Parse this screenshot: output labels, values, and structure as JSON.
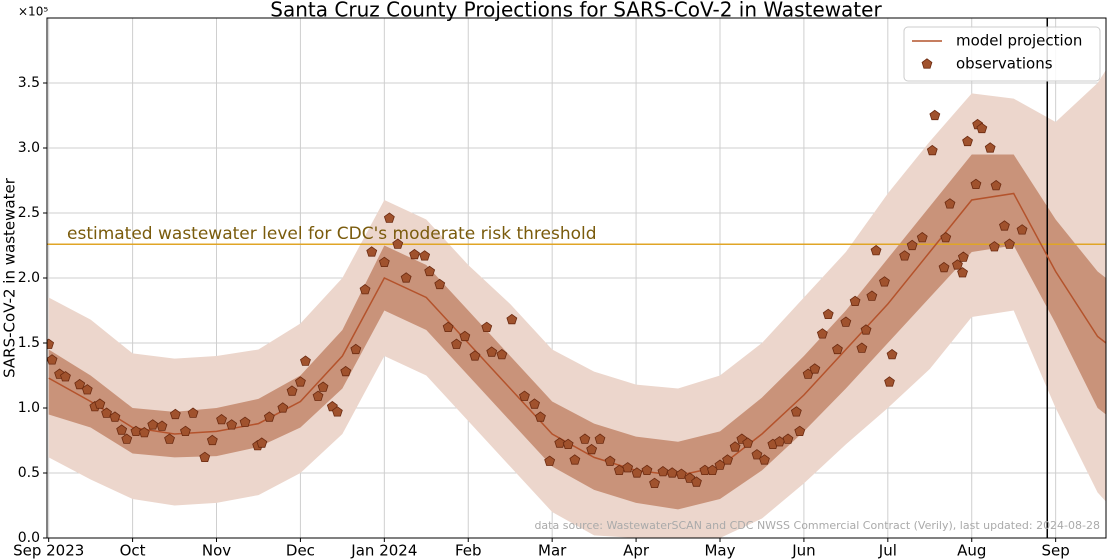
{
  "chart_data": {
    "type": "line",
    "title": "Santa Cruz County Projections for SARS-CoV-2 in Wastewater",
    "ylabel": "SARS-CoV-2 in wastewater",
    "y_multiplier": "×10⁵",
    "note": "data source: WastewaterSCAN and CDC NWSS Commercial Contract (Verily), last updated: 2024-08-28",
    "xlim": [
      -0.02,
      12.6
    ],
    "xticks": [
      {
        "value": 0,
        "label": "Sep 2023"
      },
      {
        "value": 1,
        "label": "Oct"
      },
      {
        "value": 2,
        "label": "Nov"
      },
      {
        "value": 3,
        "label": "Dec"
      },
      {
        "value": 4,
        "label": "Jan 2024"
      },
      {
        "value": 5,
        "label": "Feb"
      },
      {
        "value": 6,
        "label": "Mar"
      },
      {
        "value": 7,
        "label": "Apr"
      },
      {
        "value": 8,
        "label": "May"
      },
      {
        "value": 9,
        "label": "Jun"
      },
      {
        "value": 10,
        "label": "Jul"
      },
      {
        "value": 11,
        "label": "Aug"
      },
      {
        "value": 12,
        "label": "Sep"
      }
    ],
    "ylim": [
      0,
      4.0
    ],
    "yticks": [
      {
        "value": 0,
        "label": "0.0"
      },
      0.5,
      {
        "value": 1,
        "label": "1.0"
      },
      1.5,
      {
        "value": 2,
        "label": "2.0"
      },
      2.5,
      {
        "value": 3,
        "label": "3.0"
      },
      3.5
    ],
    "grid": true,
    "legend": "upper right",
    "threshold": {
      "value": 2.26,
      "label": "estimated wastewater level for CDC's moderate risk threshold",
      "color": "#e0a526",
      "text_color": "#7a5b0c"
    },
    "vline": {
      "value": 11.9,
      "color": "#000000"
    },
    "series": [
      {
        "name": "model projection",
        "type": "line",
        "color": "#b4532c",
        "x": [
          0,
          0.5,
          1,
          1.5,
          2,
          2.5,
          3,
          3.5,
          4,
          4.5,
          5,
          5.5,
          6,
          6.5,
          7,
          7.5,
          8,
          8.5,
          9,
          9.5,
          10,
          10.5,
          11,
          11.5,
          12,
          12.5,
          12.6
        ],
        "values": [
          1.23,
          1.05,
          0.85,
          0.8,
          0.82,
          0.88,
          1.05,
          1.4,
          2.0,
          1.85,
          1.5,
          1.15,
          0.8,
          0.62,
          0.52,
          0.48,
          0.55,
          0.8,
          1.1,
          1.45,
          1.8,
          2.2,
          2.6,
          2.65,
          2.05,
          1.55,
          1.5
        ],
        "intervals": [
          {
            "color": "#ecd6cc",
            "lower": [
              0.62,
              0.45,
              0.3,
              0.25,
              0.27,
              0.33,
              0.5,
              0.8,
              1.4,
              1.25,
              0.9,
              0.55,
              0.2,
              0.02,
              0,
              0,
              0,
              0.15,
              0.42,
              0.72,
              1.0,
              1.3,
              1.7,
              1.75,
              1.0,
              0.35,
              0.28
            ],
            "upper": [
              1.85,
              1.68,
              1.42,
              1.38,
              1.4,
              1.45,
              1.65,
              2.0,
              2.6,
              2.45,
              2.1,
              1.8,
              1.45,
              1.28,
              1.18,
              1.15,
              1.25,
              1.5,
              1.85,
              2.2,
              2.65,
              3.05,
              3.42,
              3.38,
              3.2,
              3.5,
              3.6
            ]
          },
          {
            "color": "#c9937a",
            "lower": [
              0.95,
              0.85,
              0.65,
              0.62,
              0.63,
              0.7,
              0.85,
              1.15,
              1.75,
              1.6,
              1.25,
              0.9,
              0.55,
              0.37,
              0.27,
              0.22,
              0.3,
              0.52,
              0.82,
              1.15,
              1.5,
              1.85,
              2.2,
              2.25,
              1.65,
              1.0,
              0.95
            ],
            "upper": [
              1.45,
              1.25,
              1.0,
              0.97,
              1.0,
              1.07,
              1.25,
              1.6,
              2.25,
              2.1,
              1.75,
              1.4,
              1.05,
              0.88,
              0.78,
              0.74,
              0.82,
              1.08,
              1.4,
              1.75,
              2.15,
              2.55,
              2.95,
              2.95,
              2.45,
              2.05,
              2.0
            ]
          }
        ]
      },
      {
        "name": "observations",
        "type": "scatter",
        "color": "#a0522d",
        "edge_color": "#6b2a10",
        "x": [
          0.0,
          0.04,
          0.13,
          0.2,
          0.37,
          0.46,
          0.55,
          0.61,
          0.69,
          0.79,
          0.87,
          0.93,
          1.04,
          1.14,
          1.24,
          1.35,
          1.44,
          1.51,
          1.63,
          1.72,
          1.86,
          1.95,
          2.06,
          2.18,
          2.34,
          2.49,
          2.54,
          2.63,
          2.79,
          2.9,
          3.0,
          3.06,
          3.21,
          3.27,
          3.38,
          3.44,
          3.54,
          3.66,
          3.77,
          3.85,
          4.0,
          4.06,
          4.16,
          4.26,
          4.36,
          4.48,
          4.54,
          4.66,
          4.76,
          4.86,
          4.96,
          5.08,
          5.22,
          5.28,
          5.4,
          5.52,
          5.67,
          5.79,
          5.86,
          5.97,
          6.09,
          6.19,
          6.27,
          6.39,
          6.47,
          6.57,
          6.69,
          6.8,
          6.9,
          7.01,
          7.13,
          7.22,
          7.32,
          7.43,
          7.54,
          7.64,
          7.72,
          7.82,
          7.91,
          8.0,
          8.09,
          8.18,
          8.26,
          8.33,
          8.44,
          8.53,
          8.63,
          8.71,
          8.81,
          8.91,
          8.95,
          9.05,
          9.13,
          9.22,
          9.29,
          9.4,
          9.5,
          9.61,
          9.69,
          9.74,
          9.81,
          9.86,
          9.96,
          10.02,
          10.05,
          10.2,
          10.29,
          10.41,
          10.53,
          10.56,
          10.67,
          10.69,
          10.74,
          10.83,
          10.89,
          10.9,
          10.95,
          11.05,
          11.07,
          11.12,
          11.22,
          11.27,
          11.29,
          11.39,
          11.45,
          11.6
        ],
        "values": [
          1.49,
          1.37,
          1.26,
          1.24,
          1.18,
          1.14,
          1.01,
          1.03,
          0.96,
          0.93,
          0.83,
          0.76,
          0.82,
          0.81,
          0.87,
          0.86,
          0.76,
          0.95,
          0.82,
          0.96,
          0.62,
          0.75,
          0.91,
          0.87,
          0.89,
          0.71,
          0.73,
          0.93,
          1.0,
          1.13,
          1.2,
          1.36,
          1.09,
          1.16,
          1.01,
          0.97,
          1.28,
          1.45,
          1.91,
          2.2,
          2.12,
          2.46,
          2.26,
          2.0,
          2.18,
          2.17,
          2.05,
          1.95,
          1.62,
          1.49,
          1.55,
          1.4,
          1.62,
          1.43,
          1.41,
          1.68,
          1.09,
          1.03,
          0.93,
          0.59,
          0.73,
          0.72,
          0.6,
          0.76,
          0.68,
          0.76,
          0.59,
          0.52,
          0.54,
          0.5,
          0.52,
          0.42,
          0.51,
          0.5,
          0.49,
          0.46,
          0.43,
          0.52,
          0.52,
          0.56,
          0.6,
          0.7,
          0.76,
          0.73,
          0.64,
          0.6,
          0.72,
          0.74,
          0.76,
          0.97,
          0.82,
          1.26,
          1.3,
          1.57,
          1.72,
          1.45,
          1.66,
          1.82,
          1.46,
          1.6,
          1.86,
          2.21,
          1.97,
          1.2,
          1.41,
          2.17,
          2.25,
          2.31,
          2.98,
          3.25,
          2.08,
          2.31,
          2.57,
          2.1,
          2.04,
          2.16,
          3.05,
          2.72,
          3.18,
          3.15,
          3.0,
          2.24,
          2.71,
          2.4,
          2.26,
          2.37
        ]
      }
    ]
  }
}
